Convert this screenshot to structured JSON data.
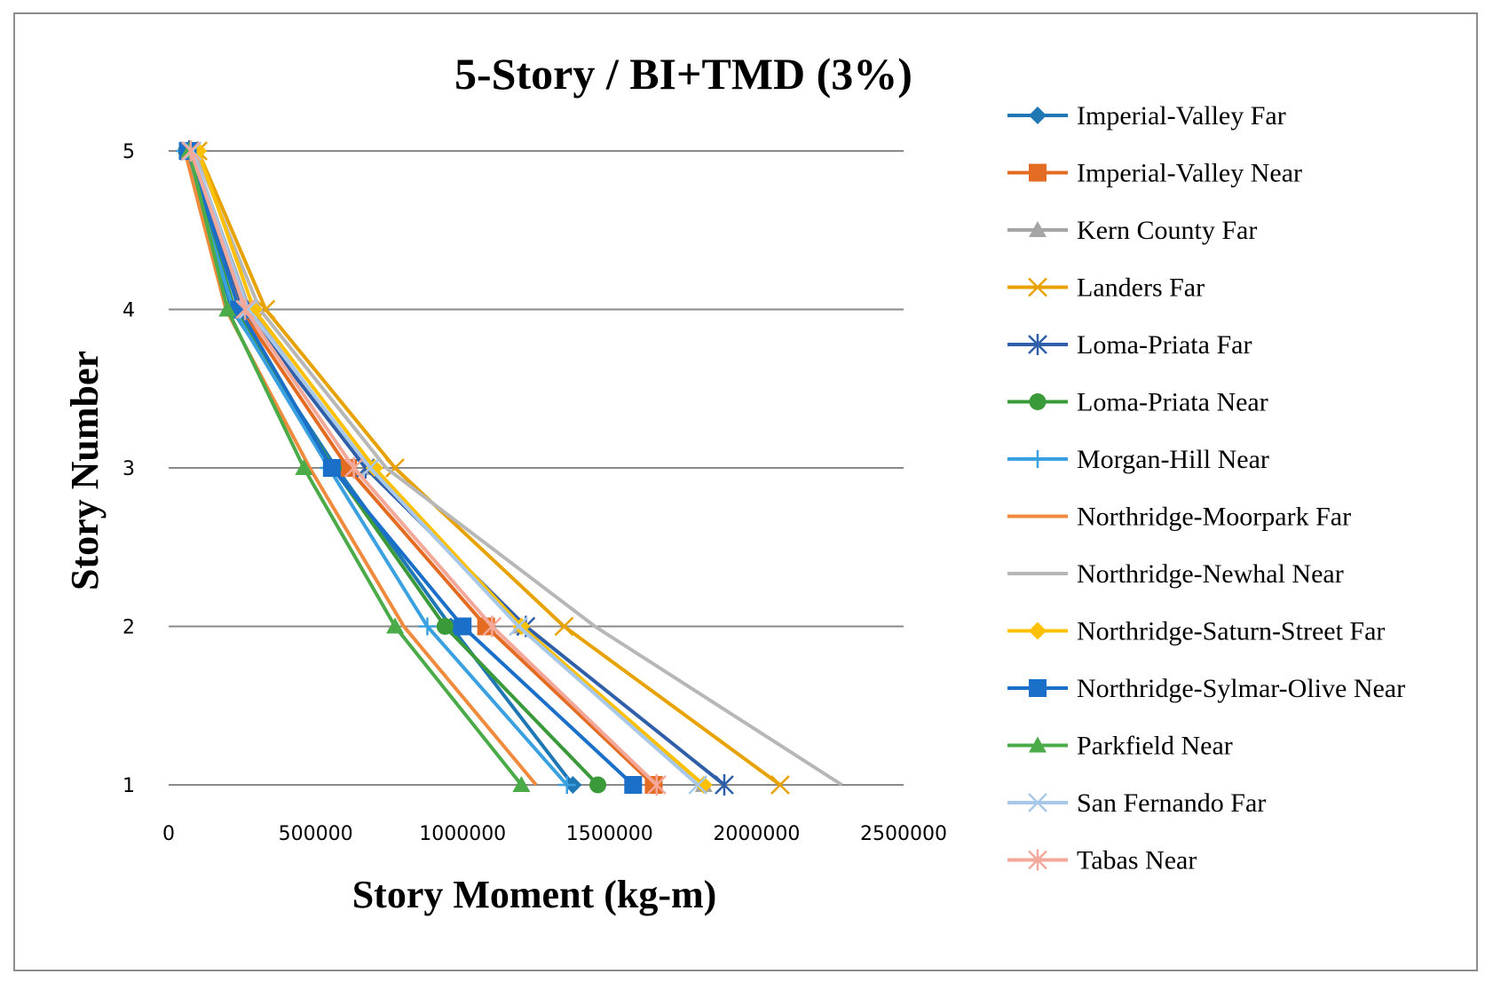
{
  "chart_data": {
    "type": "line",
    "title": "5-Story / BI+TMD  (3%)",
    "xlabel": "Story Moment (kg-m)",
    "ylabel": "Story Number",
    "xlim": [
      0,
      2500000
    ],
    "ylim": [
      1,
      5
    ],
    "x_ticks": [
      "0",
      "500000",
      "1000000",
      "1500000",
      "2000000",
      "2500000"
    ],
    "y_ticks": [
      "1",
      "2",
      "3",
      "4",
      "5"
    ],
    "grid": "horizontal",
    "legend_position": "right",
    "series": [
      {
        "name": "Imperial-Valley Far",
        "color": "#1f77b4",
        "marker": "diamond",
        "x": [
          1375000,
          960000,
          570000,
          215000,
          60000
        ],
        "y": [
          1,
          2,
          3,
          4,
          5
        ]
      },
      {
        "name": "Imperial-Valley Near",
        "color": "#e46c22",
        "marker": "square",
        "x": [
          1650000,
          1080000,
          610000,
          245000,
          70000
        ],
        "y": [
          1,
          2,
          3,
          4,
          5
        ]
      },
      {
        "name": "Kern County Far",
        "color": "#a5a5a5",
        "marker": "triangle",
        "x": [
          1820000,
          1195000,
          680000,
          275000,
          80000
        ],
        "y": [
          1,
          2,
          3,
          4,
          5
        ]
      },
      {
        "name": "Landers Far",
        "color": "#e8a200",
        "marker": "x",
        "x": [
          2080000,
          1345000,
          770000,
          330000,
          100000
        ],
        "y": [
          1,
          2,
          3,
          4,
          5
        ]
      },
      {
        "name": "Loma-Priata Far",
        "color": "#2e5fa8",
        "marker": "asterisk",
        "x": [
          1890000,
          1215000,
          670000,
          255000,
          70000
        ],
        "y": [
          1,
          2,
          3,
          4,
          5
        ]
      },
      {
        "name": "Loma-Priata Near",
        "color": "#3a9a3a",
        "marker": "circle",
        "x": [
          1460000,
          940000,
          560000,
          225000,
          60000
        ],
        "y": [
          1,
          2,
          3,
          4,
          5
        ]
      },
      {
        "name": "Morgan-Hill Near",
        "color": "#3aa0e0",
        "marker": "plus",
        "x": [
          1355000,
          880000,
          545000,
          220000,
          55000
        ],
        "y": [
          1,
          2,
          3,
          4,
          5
        ]
      },
      {
        "name": "Northridge-Moorpark Far",
        "color": "#f08a3c",
        "marker": "none",
        "x": [
          1250000,
          800000,
          480000,
          195000,
          55000
        ],
        "y": [
          1,
          2,
          3,
          4,
          5
        ]
      },
      {
        "name": "Northridge-Newhal Near",
        "color": "#b7b7b7",
        "marker": "none",
        "x": [
          2290000,
          1450000,
          740000,
          310000,
          90000
        ],
        "y": [
          1,
          2,
          3,
          4,
          5
        ]
      },
      {
        "name": "Northridge-Saturn-Street Far",
        "color": "#ffc000",
        "marker": "diamond",
        "x": [
          1820000,
          1200000,
          700000,
          290000,
          100000
        ],
        "y": [
          1,
          2,
          3,
          4,
          5
        ]
      },
      {
        "name": "Northridge-Sylmar-Olive Near",
        "color": "#1a6fc8",
        "marker": "square",
        "x": [
          1580000,
          1000000,
          555000,
          240000,
          65000
        ],
        "y": [
          1,
          2,
          3,
          4,
          5
        ]
      },
      {
        "name": "Parkfield Near",
        "color": "#4aab48",
        "marker": "triangle",
        "x": [
          1200000,
          770000,
          460000,
          200000,
          70000
        ],
        "y": [
          1,
          2,
          3,
          4,
          5
        ]
      },
      {
        "name": "San Fernando Far",
        "color": "#a8c8ea",
        "marker": "x",
        "x": [
          1800000,
          1190000,
          685000,
          270000,
          80000
        ],
        "y": [
          1,
          2,
          3,
          4,
          5
        ]
      },
      {
        "name": "Tabas Near",
        "color": "#f4a89a",
        "marker": "asterisk",
        "x": [
          1660000,
          1100000,
          630000,
          260000,
          75000
        ],
        "y": [
          1,
          2,
          3,
          4,
          5
        ]
      }
    ]
  }
}
